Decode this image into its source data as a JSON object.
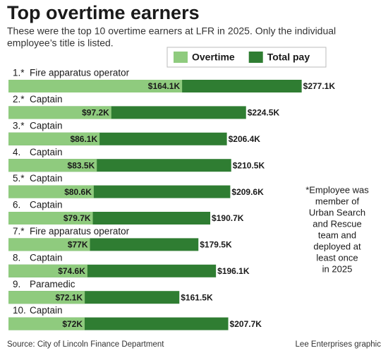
{
  "chart_data": {
    "type": "bar",
    "orientation": "horizontal",
    "overlap": true,
    "title": "Top overtime earners",
    "subtitle": [
      "These were the top 10 overtime earners at LFR in 2025. Only the individual",
      "employee’s title is listed."
    ],
    "ranks": [
      "1.*",
      "2.*",
      "3.*",
      "4.",
      "5.*",
      "6.",
      "7.*",
      "8.",
      "9.",
      "10."
    ],
    "categories": [
      "Fire apparatus operator",
      "Captain",
      "Captain",
      "Captain",
      "Captain",
      "Captain",
      "Fire apparatus operator",
      "Captain",
      "Paramedic",
      "Captain"
    ],
    "series": [
      {
        "name": "Total pay",
        "color": "#2f7d32",
        "values": [
          277.1,
          224.5,
          206.4,
          210.5,
          209.6,
          190.7,
          179.5,
          196.1,
          161.5,
          207.7
        ],
        "value_labels": [
          "$277.1K",
          "$224.5K",
          "$206.4K",
          "$210.5K",
          "$209.6K",
          "$190.7K",
          "$179.5K",
          "$196.1K",
          "$161.5K",
          "$207.7K"
        ]
      },
      {
        "name": "Overtime",
        "color": "#8fcb7e",
        "values": [
          164.1,
          97.2,
          86.1,
          83.5,
          80.6,
          79.7,
          77,
          74.6,
          72.1,
          72
        ],
        "value_labels": [
          "$164.1K",
          "$97.2K",
          "$86.1K",
          "$83.5K",
          "$80.6K",
          "$79.7K",
          "$77K",
          "$74.6K",
          "$72.1K",
          "$72K"
        ]
      }
    ],
    "legend_order": [
      "Overtime",
      "Total pay"
    ],
    "note": [
      "*Employee was",
      "member of",
      "Urban Search",
      "and Rescue",
      "team and",
      "deployed at",
      "least once",
      "in 2025"
    ],
    "source": "Source: City of Lincoln Finance Department",
    "credit": "Lee Enterprises graphic"
  }
}
